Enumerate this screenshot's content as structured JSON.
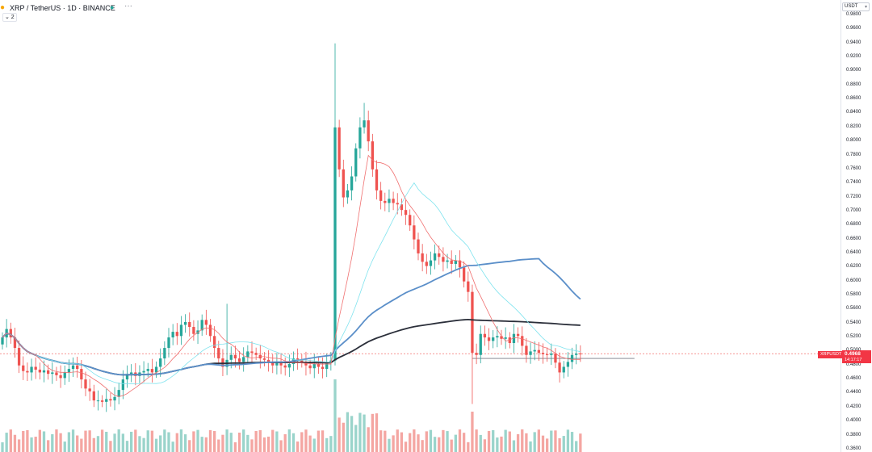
{
  "header": {
    "symbol": "XRP",
    "title": "XRP / TetherUS · 1D · BINANCE",
    "more": "···",
    "collapse": "⌄ 2"
  },
  "price_axis": {
    "currency": "USDT",
    "currency_caret": "▾"
  },
  "last_price": {
    "symbol_tag": "XRPUSDT",
    "value": "0.4968",
    "countdown": "14:17:17"
  },
  "colors": {
    "up": "#26a69a",
    "down": "#ef5350",
    "ma_fast": "#f07070",
    "ma_cyan": "#7fe3ee",
    "ma_blue": "#5b8fc9",
    "ma_black": "#2b2f3a",
    "volume_up": "#9ad4cb",
    "volume_down": "#f4a6a2"
  },
  "chart_data": {
    "type": "candlestick",
    "title": "XRP / TetherUS · 1D · BINANCE",
    "ylim": [
      0.36,
      0.98
    ],
    "yticks": [
      "0.9800",
      "0.9600",
      "0.9400",
      "0.9200",
      "0.9000",
      "0.8800",
      "0.8600",
      "0.8400",
      "0.8200",
      "0.8000",
      "0.7800",
      "0.7600",
      "0.7400",
      "0.7200",
      "0.7000",
      "0.6800",
      "0.6600",
      "0.6400",
      "0.6200",
      "0.6000",
      "0.5800",
      "0.5600",
      "0.5400",
      "0.5200",
      "0.5000",
      "0.4800",
      "0.4600",
      "0.4400",
      "0.4200",
      "0.4000",
      "0.3800",
      "0.3600"
    ],
    "last_price": 0.4968,
    "close_series": [
      0.52,
      0.532,
      0.52,
      0.505,
      0.48,
      0.472,
      0.47,
      0.478,
      0.474,
      0.47,
      0.473,
      0.468,
      0.47,
      0.466,
      0.462,
      0.47,
      0.475,
      0.48,
      0.475,
      0.46,
      0.447,
      0.443,
      0.43,
      0.43,
      0.428,
      0.432,
      0.43,
      0.435,
      0.445,
      0.46,
      0.468,
      0.47,
      0.465,
      0.47,
      0.472,
      0.475,
      0.47,
      0.478,
      0.49,
      0.505,
      0.52,
      0.528,
      0.522,
      0.538,
      0.542,
      0.535,
      0.525,
      0.53,
      0.545,
      0.538,
      0.522,
      0.505,
      0.49,
      0.478,
      0.488,
      0.495,
      0.49,
      0.485,
      0.492,
      0.5,
      0.498,
      0.495,
      0.49,
      0.488,
      0.485,
      0.48,
      0.485,
      0.48,
      0.477,
      0.482,
      0.49,
      0.488,
      0.485,
      0.48,
      0.476,
      0.482,
      0.478,
      0.475,
      0.485,
      0.487,
      0.82,
      0.76,
      0.72,
      0.73,
      0.75,
      0.79,
      0.82,
      0.83,
      0.8,
      0.76,
      0.73,
      0.715,
      0.712,
      0.718,
      0.712,
      0.71,
      0.702,
      0.695,
      0.68,
      0.66,
      0.64,
      0.628,
      0.622,
      0.63,
      0.64,
      0.635,
      0.628,
      0.63,
      0.625,
      0.63,
      0.62,
      0.6,
      0.585,
      0.498,
      0.495,
      0.525,
      0.52,
      0.515,
      0.52,
      0.522,
      0.518,
      0.52,
      0.512,
      0.525,
      0.522,
      0.508,
      0.495,
      0.5,
      0.502,
      0.498,
      0.496,
      0.495,
      0.497,
      0.484,
      0.47,
      0.478,
      0.485,
      0.495,
      0.497,
      0.4968
    ],
    "overlays": [
      {
        "name": "",
        "color": "ma_fast"
      },
      {
        "name": "",
        "color": "ma_cyan"
      },
      {
        "name": "",
        "color": "ma_blue"
      },
      {
        "name": "",
        "color": "ma_black"
      }
    ],
    "horizontal_line": 0.49,
    "volume": true
  }
}
